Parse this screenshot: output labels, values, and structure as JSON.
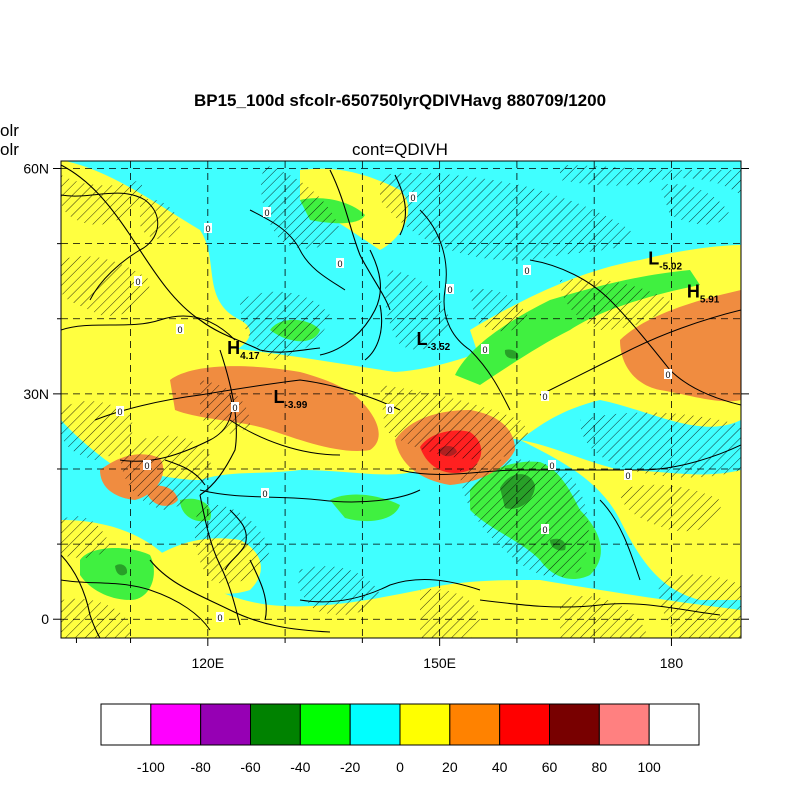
{
  "figure": {
    "title": "BP15_100d sfcolr-650750lyrQDIVHavg  880709/1200",
    "subtitle": "cont=QDIVH",
    "left_label_1": "olr",
    "left_label_2": "olr"
  },
  "map": {
    "lon_range": [
      101,
      189
    ],
    "lat_range": [
      -2.5,
      61
    ],
    "lat_ticks": [
      {
        "lat": 60,
        "label": "60N"
      },
      {
        "lat": 30,
        "label": "30N"
      },
      {
        "lat": 0,
        "label": "0"
      }
    ],
    "lon_ticks": [
      {
        "lon": 120,
        "label": "120E"
      },
      {
        "lon": 150,
        "label": "150E"
      },
      {
        "lon": 180,
        "label": "180"
      }
    ],
    "minor_lon_ticks": [
      110,
      130,
      140,
      160,
      170
    ],
    "minor_lat_ticks": [
      10,
      20,
      40,
      50
    ],
    "highs_lows": [
      {
        "type": "H",
        "lon": 122.5,
        "lat": 35.3,
        "value": "4.17"
      },
      {
        "type": "L",
        "lon": 128.5,
        "lat": 28.8,
        "value": "-3.99"
      },
      {
        "type": "L",
        "lon": 147,
        "lat": 36.5,
        "value": "-3.52"
      },
      {
        "type": "L",
        "lon": 177,
        "lat": 47.2,
        "value": "-5.02"
      },
      {
        "type": "H",
        "lon": 182,
        "lat": 42.8,
        "value": "5.91"
      }
    ],
    "contour_labels": [
      "0",
      "0",
      "0",
      "0",
      "0",
      "0",
      "0",
      "0",
      "0",
      "0",
      "0",
      "0",
      "0",
      "0",
      "0",
      "0",
      "0",
      "0",
      "0",
      "0"
    ]
  },
  "colorbar": {
    "labels": [
      "-100",
      "-80",
      "-60",
      "-40",
      "-20",
      "0",
      "20",
      "40",
      "60",
      "80",
      "100"
    ],
    "colors": [
      "#ffffff",
      "#ff00ff",
      "#9600b4",
      "#008200",
      "#00ff00",
      "#00ffff",
      "#ffff00",
      "#ff8200",
      "#ff0000",
      "#780000",
      "#ff8080",
      "#ffffff"
    ]
  },
  "palette": {
    "base": "#40ffff",
    "yellow": "#ffff40",
    "green": "#40f040",
    "dkgreen": "#28a028",
    "orange": "#f08c40",
    "red": "#ff2020",
    "darkred": "#b02020"
  }
}
